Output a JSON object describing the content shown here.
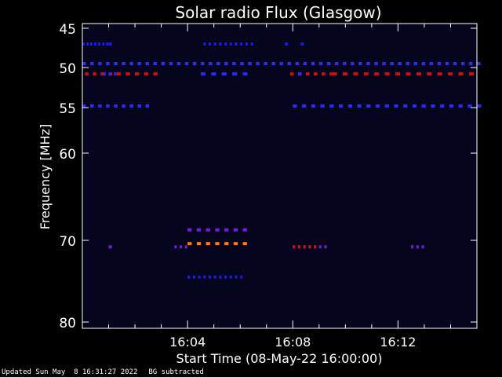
{
  "chart_data": {
    "type": "heatmap",
    "title": "Solar radio Flux (Glasgow)",
    "ylabel": "Frequency [MHz]",
    "xlabel": "Start Time (08-May-22 16:00:00)",
    "x_tick_labels": [
      "16:04",
      "16:08",
      "16:12"
    ],
    "x_tick_minutes": [
      4,
      8,
      12
    ],
    "xlim_minutes": [
      0,
      15
    ],
    "y_tick_labels": [
      "45",
      "50",
      "55",
      "60",
      "70",
      "80"
    ],
    "y_tick_values": [
      45,
      50,
      55,
      60,
      70,
      80
    ],
    "ylim": [
      45,
      80
    ],
    "y_reversed": true,
    "grid": false,
    "background_color": "#05051e",
    "colors": {
      "dim_blue": "#1a1ae6",
      "blue": "#2a2aff",
      "violet": "#7a1ae0",
      "red": "#d01010",
      "orange": "#ff7a10",
      "yellow": "#ffd040"
    },
    "features": [
      {
        "freq": 47,
        "level": "dim_blue",
        "dashes": [
          [
            0.0,
            0.9,
            0.15
          ],
          [
            1.0,
            1.2,
            0.0
          ],
          [
            4.6,
            6.4,
            0.2
          ],
          [
            7.7,
            7.9,
            0.0
          ],
          [
            8.3,
            8.5,
            0.0
          ]
        ]
      },
      {
        "freq": 49.5,
        "level": "blue",
        "dashes": [
          [
            0.0,
            15.0,
            0.3
          ]
        ]
      },
      {
        "freq": 50.8,
        "level": "red",
        "dashes": [
          [
            0.1,
            1.0,
            0.3
          ],
          [
            1.3,
            1.9,
            0.35
          ],
          [
            2.0,
            2.7,
            0.35
          ],
          [
            7.9,
            9.5,
            0.3
          ],
          [
            9.5,
            15.0,
            0.4
          ]
        ]
      },
      {
        "freq": 50.8,
        "level": "blue",
        "dashes": [
          [
            0.8,
            1.2,
            0.2
          ],
          [
            4.5,
            6.3,
            0.4
          ],
          [
            8.2,
            8.4,
            0.0
          ]
        ]
      },
      {
        "freq": 54.8,
        "level": "blue",
        "dashes": [
          [
            0.0,
            2.5,
            0.3
          ],
          [
            8.0,
            15.0,
            0.35
          ]
        ]
      },
      {
        "freq": 68.8,
        "level": "violet",
        "dashes": [
          [
            4.0,
            6.1,
            0.35
          ]
        ]
      },
      {
        "freq": 70.4,
        "level": "orange",
        "dashes": [
          [
            4.0,
            6.1,
            0.35
          ]
        ]
      },
      {
        "freq": 70.8,
        "level": "violet",
        "dashes": [
          [
            1.0,
            1.1,
            0.0
          ],
          [
            3.5,
            3.9,
            0.2
          ],
          [
            8.0,
            9.2,
            0.2
          ],
          [
            12.5,
            12.9,
            0.2
          ]
        ]
      },
      {
        "freq": 70.8,
        "level": "red",
        "dashes": [
          [
            8.0,
            8.8,
            0.2
          ]
        ]
      },
      {
        "freq": 74.5,
        "level": "dim_blue",
        "dashes": [
          [
            4.0,
            6.0,
            0.2
          ]
        ]
      }
    ]
  },
  "footer": {
    "updated": "Updated Sun May  8 16:31:27 2022",
    "bg_note": "BG subtracted"
  }
}
